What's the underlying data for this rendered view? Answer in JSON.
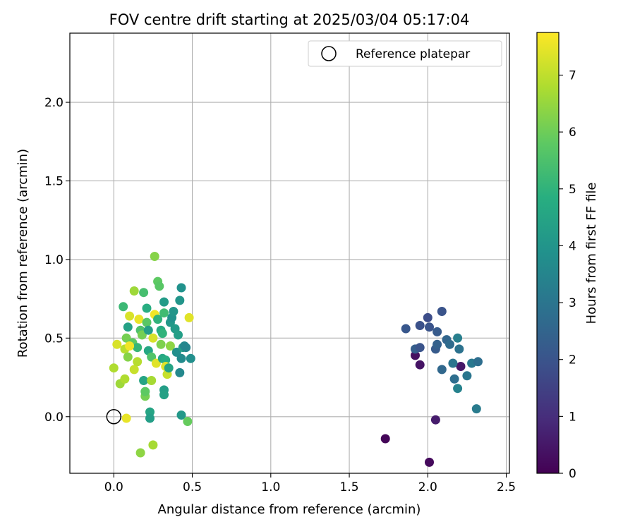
{
  "chart_data": {
    "type": "scatter",
    "title": "FOV centre drift starting at 2025/03/04 05:17:04",
    "xlabel": "Angular distance from reference (arcmin)",
    "ylabel": "Rotation from reference (arcmin)",
    "xlim": [
      -0.28,
      2.52
    ],
    "ylim": [
      -0.36,
      2.44
    ],
    "xticks": [
      "0.0",
      "0.5",
      "1.0",
      "1.5",
      "2.0",
      "2.5"
    ],
    "yticks": [
      "0.0",
      "0.5",
      "1.0",
      "1.5",
      "2.0"
    ],
    "grid": true,
    "legend": {
      "placement": "top-right",
      "entries": [
        "Reference platepar"
      ]
    },
    "reference_point": {
      "x": 0.0,
      "y": 0.0,
      "marker": "open-circle"
    },
    "colorbar": {
      "label": "Hours from first FF file",
      "range": [
        0,
        7.75
      ],
      "ticks": [
        "0",
        "1",
        "2",
        "3",
        "4",
        "5",
        "6",
        "7"
      ],
      "colormap": "viridis"
    },
    "series": [
      {
        "points": [
          [
            1.73,
            -0.14,
            0.1
          ],
          [
            1.92,
            0.39,
            0.3
          ],
          [
            1.95,
            0.33,
            0.4
          ],
          [
            2.01,
            -0.29,
            0.2
          ],
          [
            2.05,
            -0.02,
            0.6
          ],
          [
            2.21,
            0.32,
            0.5
          ],
          [
            1.86,
            0.56,
            2.1
          ],
          [
            1.92,
            0.43,
            2.3
          ],
          [
            1.95,
            0.44,
            2.0
          ],
          [
            1.95,
            0.58,
            1.9
          ],
          [
            2.0,
            0.63,
            1.8
          ],
          [
            2.01,
            0.57,
            2.0
          ],
          [
            2.05,
            0.43,
            2.2
          ],
          [
            2.06,
            0.46,
            2.4
          ],
          [
            2.06,
            0.54,
            2.2
          ],
          [
            2.09,
            0.3,
            2.6
          ],
          [
            2.09,
            0.67,
            2.0
          ],
          [
            2.12,
            0.49,
            2.5
          ],
          [
            2.14,
            0.46,
            2.7
          ],
          [
            2.16,
            0.34,
            3.0
          ],
          [
            2.17,
            0.24,
            2.8
          ],
          [
            2.19,
            0.18,
            3.4
          ],
          [
            2.19,
            0.5,
            3.3
          ],
          [
            2.2,
            0.43,
            2.9
          ],
          [
            2.25,
            0.26,
            3.0
          ],
          [
            2.28,
            0.34,
            3.1
          ],
          [
            2.31,
            0.05,
            3.2
          ],
          [
            2.32,
            0.35,
            2.8
          ],
          [
            0.04,
            0.21,
            6.6
          ],
          [
            0.06,
            0.7,
            5.2
          ],
          [
            0.07,
            0.24,
            6.8
          ],
          [
            0.07,
            0.43,
            6.9
          ],
          [
            0.08,
            0.5,
            6.1
          ],
          [
            0.09,
            0.38,
            6.3
          ],
          [
            0.09,
            0.57,
            4.4
          ],
          [
            0.1,
            0.64,
            7.3
          ],
          [
            0.12,
            0.47,
            5.8
          ],
          [
            0.13,
            0.3,
            7.1
          ],
          [
            0.13,
            0.8,
            6.6
          ],
          [
            0.15,
            0.35,
            6.9
          ],
          [
            0.15,
            0.44,
            5.1
          ],
          [
            0.16,
            0.62,
            7.5
          ],
          [
            0.17,
            0.55,
            5.5
          ],
          [
            0.17,
            -0.23,
            6.4
          ],
          [
            0.18,
            0.52,
            6.1
          ],
          [
            0.19,
            0.79,
            5.4
          ],
          [
            0.19,
            0.23,
            4.5
          ],
          [
            0.2,
            0.13,
            6.1
          ],
          [
            0.2,
            0.16,
            5.8
          ],
          [
            0.21,
            0.69,
            4.8
          ],
          [
            0.21,
            0.6,
            5.7
          ],
          [
            0.22,
            0.55,
            4.3
          ],
          [
            0.22,
            0.42,
            4.6
          ],
          [
            0.23,
            0.03,
            4.5
          ],
          [
            0.23,
            -0.01,
            4.3
          ],
          [
            0.24,
            0.38,
            5.6
          ],
          [
            0.24,
            0.23,
            6.7
          ],
          [
            0.25,
            0.5,
            7.3
          ],
          [
            0.25,
            -0.18,
            6.7
          ],
          [
            0.26,
            0.65,
            7.6
          ],
          [
            0.26,
            1.02,
            6.3
          ],
          [
            0.27,
            0.34,
            7.4
          ],
          [
            0.28,
            0.62,
            5.0
          ],
          [
            0.28,
            0.86,
            5.8
          ],
          [
            0.29,
            0.83,
            5.7
          ],
          [
            0.3,
            0.55,
            4.7
          ],
          [
            0.3,
            0.46,
            6.2
          ],
          [
            0.31,
            0.37,
            4.6
          ],
          [
            0.31,
            0.53,
            5.0
          ],
          [
            0.32,
            0.66,
            5.3
          ],
          [
            0.32,
            0.73,
            4.2
          ],
          [
            0.32,
            0.17,
            4.3
          ],
          [
            0.32,
            0.14,
            4.4
          ],
          [
            0.33,
            0.36,
            4.8
          ],
          [
            0.33,
            0.32,
            7.4
          ],
          [
            0.34,
            0.27,
            7.1
          ],
          [
            0.35,
            0.31,
            4.5
          ],
          [
            0.36,
            0.45,
            6.4
          ],
          [
            0.36,
            0.6,
            4.1
          ],
          [
            0.37,
            0.63,
            3.9
          ],
          [
            0.38,
            0.67,
            4.0
          ],
          [
            0.39,
            0.56,
            4.2
          ],
          [
            0.4,
            0.41,
            3.8
          ],
          [
            0.41,
            0.52,
            4.3
          ],
          [
            0.42,
            0.28,
            3.6
          ],
          [
            0.42,
            0.74,
            4.0
          ],
          [
            0.43,
            0.82,
            3.9
          ],
          [
            0.43,
            0.01,
            4.1
          ],
          [
            0.43,
            0.37,
            3.7
          ],
          [
            0.44,
            0.44,
            4.3
          ],
          [
            0.45,
            0.45,
            3.6
          ],
          [
            0.46,
            0.44,
            3.5
          ],
          [
            0.47,
            -0.03,
            5.9
          ],
          [
            0.48,
            0.63,
            7.4
          ],
          [
            0.49,
            0.37,
            3.8
          ],
          [
            0.0,
            0.31,
            6.8
          ],
          [
            0.02,
            0.46,
            7.3
          ],
          [
            0.08,
            -0.01,
            7.5
          ],
          [
            0.1,
            0.45,
            7.6
          ]
        ]
      }
    ]
  }
}
